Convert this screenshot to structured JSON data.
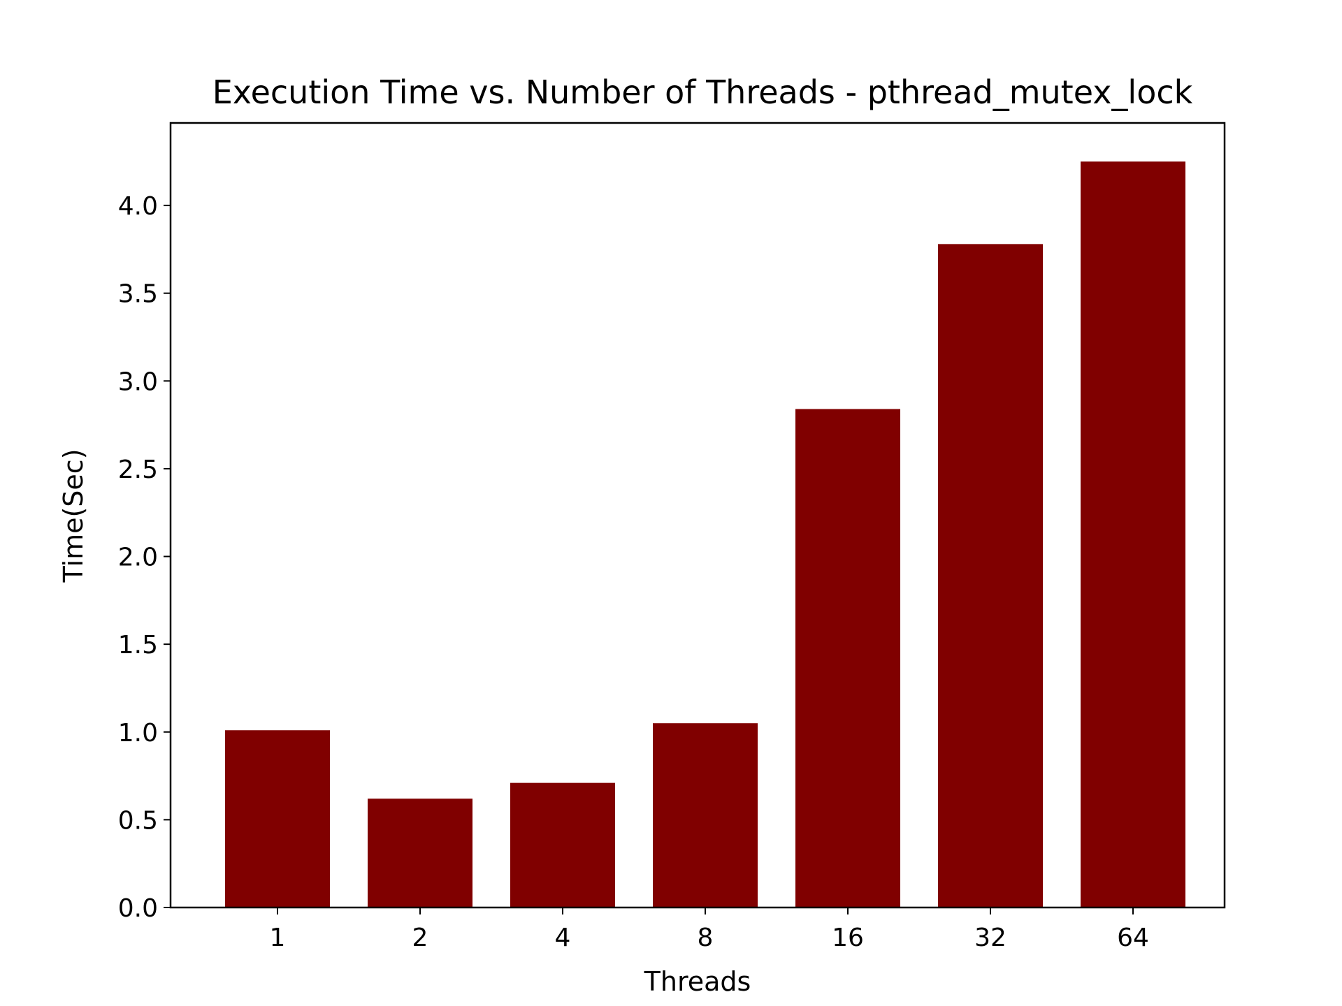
{
  "chart_data": {
    "type": "bar",
    "title": "Execution Time vs. Number of Threads - pthread_mutex_lock",
    "xlabel": "Threads",
    "ylabel": "Time(Sec)",
    "categories": [
      "1",
      "2",
      "4",
      "8",
      "16",
      "32",
      "64"
    ],
    "values": [
      1.01,
      0.62,
      0.71,
      1.05,
      2.84,
      3.78,
      4.25
    ],
    "ylim": [
      0,
      4.47
    ],
    "yticks": [
      "0.0",
      "0.5",
      "1.0",
      "1.5",
      "2.0",
      "2.5",
      "3.0",
      "3.5",
      "4.0"
    ],
    "grid": false,
    "legend": "none",
    "bar_color": "#800000"
  }
}
